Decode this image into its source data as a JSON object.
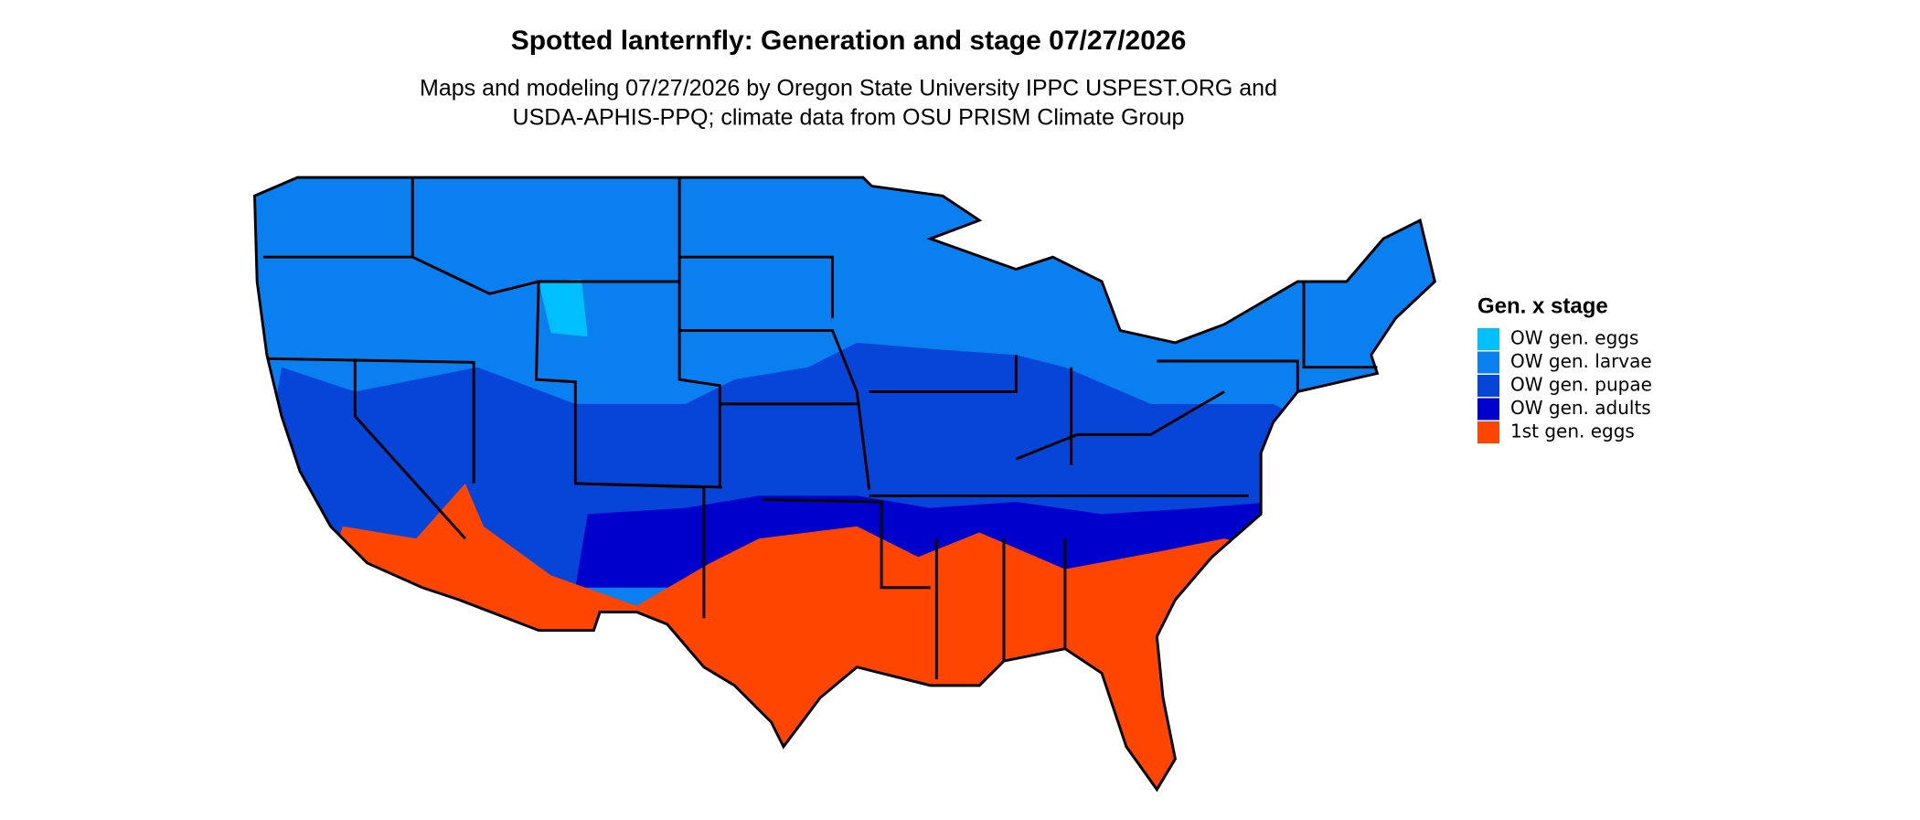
{
  "title": "Spotted lanternfly: Generation and stage 07/27/2026",
  "subtitle": [
    "Maps and modeling 07/27/2026 by Oregon State University IPPC USPEST.ORG and",
    "USDA-APHIS-PPQ; climate data from OSU PRISM Climate Group"
  ],
  "legend": {
    "title": "Gen. x stage",
    "items": [
      {
        "label": "OW gen. eggs",
        "color": "#00bfff"
      },
      {
        "label": "OW gen. larvae",
        "color": "#0a7ff0"
      },
      {
        "label": "OW gen. pupae",
        "color": "#0645d8"
      },
      {
        "label": "OW gen. adults",
        "color": "#0000cd"
      },
      {
        "label": "1st gen. eggs",
        "color": "#ff4500"
      }
    ]
  }
}
